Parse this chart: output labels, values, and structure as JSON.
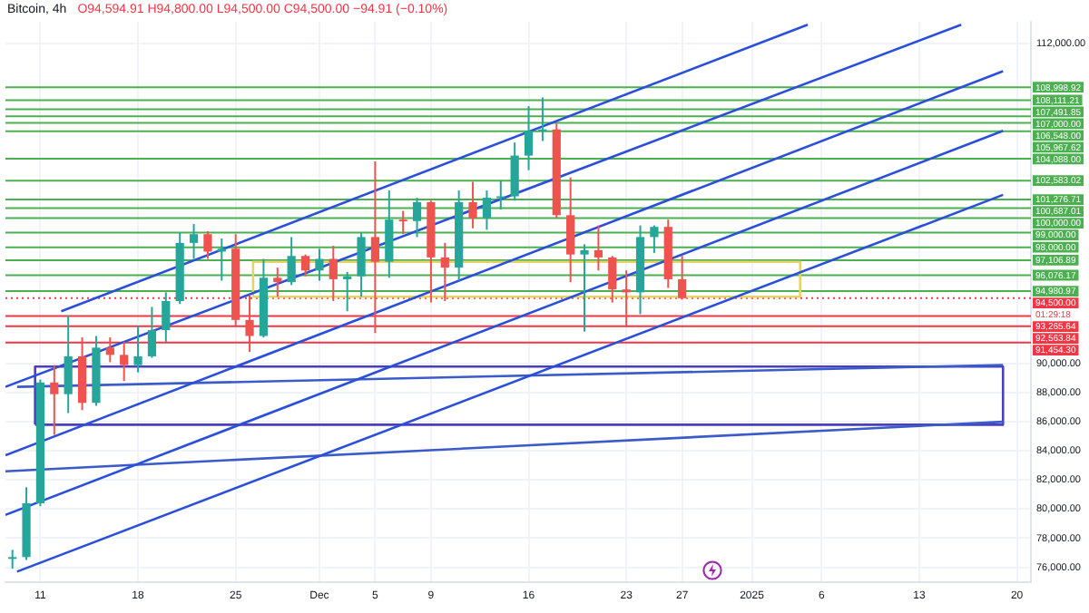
{
  "chart_data": {
    "type": "candlestick",
    "title": "Bitcoin, 4h",
    "subtitle": "O94,594.91 H94,800.00 L94,500.00 C94,500.00 −94.91 (−0.10%)",
    "x": [
      "2024-11-09",
      "2024-11-10",
      "2024-11-11",
      "2024-11-12",
      "2024-11-13",
      "2024-11-14",
      "2024-11-15",
      "2024-11-16",
      "2024-11-17",
      "2024-11-18",
      "2024-11-19",
      "2024-11-20",
      "2024-11-21",
      "2024-11-22",
      "2024-11-23",
      "2024-11-24",
      "2024-11-25",
      "2024-11-26",
      "2024-11-27",
      "2024-11-28",
      "2024-11-29",
      "2024-11-30",
      "2024-12-01",
      "2024-12-02",
      "2024-12-03",
      "2024-12-04",
      "2024-12-05",
      "2024-12-06",
      "2024-12-07",
      "2024-12-08",
      "2024-12-09",
      "2024-12-10",
      "2024-12-11",
      "2024-12-12",
      "2024-12-13",
      "2024-12-14",
      "2024-12-15",
      "2024-12-16",
      "2024-12-17",
      "2024-12-18",
      "2024-12-19",
      "2024-12-20",
      "2024-12-21",
      "2024-12-22",
      "2024-12-23",
      "2024-12-24",
      "2024-12-25",
      "2024-12-26",
      "2024-12-27"
    ],
    "ohlc": [
      [
        76600,
        77200,
        75900,
        76700
      ],
      [
        76700,
        81500,
        76500,
        80400
      ],
      [
        80400,
        88900,
        80200,
        88700
      ],
      [
        88700,
        89900,
        85100,
        87900
      ],
      [
        87900,
        93300,
        86600,
        90500
      ],
      [
        90500,
        91800,
        86800,
        87300
      ],
      [
        87300,
        91900,
        87100,
        91100
      ],
      [
        91100,
        91800,
        90100,
        90600
      ],
      [
        90600,
        91500,
        88800,
        89900
      ],
      [
        89900,
        92600,
        89400,
        90500
      ],
      [
        90500,
        93900,
        90400,
        92300
      ],
      [
        92300,
        94900,
        91500,
        94300
      ],
      [
        94300,
        99000,
        94100,
        98300
      ],
      [
        98300,
        99600,
        97200,
        98900
      ],
      [
        98900,
        99100,
        97200,
        97700
      ],
      [
        97700,
        98600,
        95700,
        97900
      ],
      [
        97900,
        98900,
        92600,
        93000
      ],
      [
        93000,
        94700,
        90800,
        91900
      ],
      [
        91900,
        97200,
        91800,
        95900
      ],
      [
        95900,
        96600,
        94600,
        95600
      ],
      [
        95600,
        98700,
        95400,
        97400
      ],
      [
        97400,
        97500,
        96000,
        96400
      ],
      [
        96400,
        97900,
        95700,
        97200
      ],
      [
        97200,
        98100,
        94300,
        95800
      ],
      [
        95800,
        96300,
        93600,
        96000
      ],
      [
        96000,
        99000,
        94600,
        98700
      ],
      [
        98700,
        103900,
        92100,
        97000
      ],
      [
        97000,
        101900,
        95900,
        99900
      ],
      [
        99900,
        100500,
        98900,
        99800
      ],
      [
        99800,
        101400,
        98700,
        101100
      ],
      [
        101100,
        101200,
        94200,
        97300
      ],
      [
        97300,
        98300,
        94300,
        96600
      ],
      [
        96600,
        101900,
        95700,
        101100
      ],
      [
        101100,
        102500,
        99300,
        100000
      ],
      [
        100000,
        101900,
        99200,
        101400
      ],
      [
        101400,
        102600,
        100600,
        101500
      ],
      [
        101500,
        105200,
        101200,
        104300
      ],
      [
        104300,
        107700,
        103300,
        106000
      ],
      [
        106000,
        108300,
        105300,
        106100
      ],
      [
        106100,
        106500,
        100000,
        100200
      ],
      [
        100200,
        102800,
        95600,
        97500
      ],
      [
        97500,
        98200,
        92200,
        97800
      ],
      [
        97800,
        99500,
        96400,
        97300
      ],
      [
        97300,
        97400,
        94200,
        95100
      ],
      [
        95100,
        96400,
        92500,
        94900
      ],
      [
        94900,
        99500,
        93400,
        98700
      ],
      [
        98700,
        99500,
        97600,
        99400
      ],
      [
        99400,
        99900,
        95200,
        95800
      ],
      [
        95800,
        97400,
        94400,
        94500
      ]
    ],
    "colors": [
      "#26a69a",
      "#26a69a",
      "#26a69a",
      "#ef5350",
      "#26a69a",
      "#ef5350",
      "#26a69a",
      "#ef5350",
      "#ef5350",
      "#26a69a",
      "#26a69a",
      "#26a69a",
      "#26a69a",
      "#26a69a",
      "#ef5350",
      "#26a69a",
      "#ef5350",
      "#ef5350",
      "#26a69a",
      "#ef5350",
      "#26a69a",
      "#ef5350",
      "#26a69a",
      "#ef5350",
      "#26a69a",
      "#26a69a",
      "#ef5350",
      "#26a69a",
      "#ef5350",
      "#26a69a",
      "#ef5350",
      "#ef5350",
      "#26a69a",
      "#ef5350",
      "#26a69a",
      "#26a69a",
      "#26a69a",
      "#26a69a",
      "#26a69a",
      "#ef5350",
      "#ef5350",
      "#26a69a",
      "#ef5350",
      "#ef5350",
      "#ef5350",
      "#26a69a",
      "#26a69a",
      "#ef5350",
      "#ef5350"
    ],
    "series": [
      {
        "type": "line",
        "color": "#2a4fd8",
        "x": [
          "2024-11-12T12:00",
          "2025-01-05T00:00"
        ],
        "values": [
          93600,
          113300
        ]
      },
      {
        "type": "line",
        "color": "#2a4fd8",
        "x": [
          "2024-11-08T12:00",
          "2025-01-16T00:00"
        ],
        "values": [
          88400,
          113300
        ]
      },
      {
        "type": "line",
        "color": "#2a4fd8",
        "x": [
          "2024-11-08T12:00",
          "2025-01-19T00:00"
        ],
        "values": [
          83700,
          110100
        ]
      },
      {
        "type": "line",
        "color": "#2a4fd8",
        "x": [
          "2024-11-08T12:00",
          "2025-01-19T00:00"
        ],
        "values": [
          79600,
          106000
        ]
      },
      {
        "type": "line",
        "color": "#2a4fd8",
        "x": [
          "2024-11-09T08:00",
          "2025-01-19T00:00"
        ],
        "values": [
          75700,
          101600
        ]
      },
      {
        "type": "line",
        "color": "#3b5bc9",
        "x": [
          "2024-11-09T08:00",
          "2025-01-19T00:00"
        ],
        "values": [
          88400,
          89900
        ]
      },
      {
        "type": "line",
        "color": "#3b5bc9",
        "x": [
          "2024-11-08T12:00",
          "2025-01-19T00:00"
        ],
        "values": [
          82600,
          86000
        ]
      },
      {
        "type": "line",
        "color": "#4a3fbf",
        "x": [
          "2024-11-10T15:00",
          "2024-11-10T15:00",
          "2025-01-19T00:00",
          "2025-01-19T00:00"
        ],
        "values": [
          85800,
          89800,
          89800,
          85800
        ]
      },
      {
        "type": "line",
        "color": "#4a3fbf",
        "x": [
          "2024-11-10T15:00",
          "2025-01-19T00:00"
        ],
        "values": [
          85800,
          85800
        ]
      },
      {
        "type": "line",
        "color": "#e6d36a",
        "x": [
          "2024-11-26T06:00",
          "2024-11-26T06:00",
          "2025-01-04T11:00",
          "2025-01-04T11:00"
        ],
        "values": [
          94600,
          97000,
          97000,
          94600
        ]
      },
      {
        "type": "line",
        "color": "#e6d36a",
        "x": [
          "2024-11-26T06:00",
          "2025-01-04T11:00"
        ],
        "values": [
          94600,
          94600
        ]
      }
    ],
    "ref_lines": [
      {
        "axis": "y",
        "value": 108998.92,
        "label": "108,998.92",
        "color": "#4caf50"
      },
      {
        "axis": "y",
        "value": 108111.21,
        "label": "108,111.21",
        "color": "#4caf50"
      },
      {
        "axis": "y",
        "value": 107491.85,
        "label": "107,491.85",
        "color": "#4caf50"
      },
      {
        "axis": "y",
        "value": 107000,
        "label": "107,000.00",
        "color": "#4caf50"
      },
      {
        "axis": "y",
        "value": 106548,
        "label": "106,548.00",
        "color": "#4caf50"
      },
      {
        "axis": "y",
        "value": 105967.62,
        "label": "105,967.62",
        "color": "#4caf50"
      },
      {
        "axis": "y",
        "value": 104088,
        "label": "104,088.00",
        "color": "#4caf50"
      },
      {
        "axis": "y",
        "value": 102583.02,
        "label": "102,583.02",
        "color": "#4caf50"
      },
      {
        "axis": "y",
        "value": 101276.71,
        "label": "101,276.71",
        "color": "#4caf50"
      },
      {
        "axis": "y",
        "value": 100687.01,
        "label": "100,687.01",
        "color": "#4caf50"
      },
      {
        "axis": "y",
        "value": 100000,
        "label": "100,000.00",
        "color": "#4caf50"
      },
      {
        "axis": "y",
        "value": 99000,
        "label": "99,000.00",
        "color": "#4caf50"
      },
      {
        "axis": "y",
        "value": 98000,
        "label": "98,000.00",
        "color": "#4caf50"
      },
      {
        "axis": "y",
        "value": 97106.89,
        "label": "97,106.89",
        "color": "#4caf50"
      },
      {
        "axis": "y",
        "value": 96076.17,
        "label": "96,076.17",
        "color": "#4caf50"
      },
      {
        "axis": "y",
        "value": 94980.97,
        "label": "94,980.97",
        "color": "#4caf50"
      },
      {
        "axis": "y",
        "value": 94500,
        "label": "94,500.00",
        "color": "#f23645",
        "line_style": "dotted"
      },
      {
        "axis": "y",
        "value": 93265.64,
        "label": "93,265.64",
        "color": "#f23645"
      },
      {
        "axis": "y",
        "value": 92563.84,
        "label": "92,563.84",
        "color": "#f23645"
      },
      {
        "axis": "y",
        "value": 91454.3,
        "label": "91,454.30",
        "color": "#f23645"
      }
    ],
    "annotations": [
      "01:29:18"
    ],
    "xlim": [
      "2024-11-08T12:00",
      "2025-01-21T00:00"
    ],
    "xticks": [
      {
        "value": "2024-11-11",
        "label": "11"
      },
      {
        "value": "2024-11-18",
        "label": "18"
      },
      {
        "value": "2024-11-25",
        "label": "25"
      },
      {
        "value": "2024-12-01",
        "label": "Dec"
      },
      {
        "value": "2024-12-05",
        "label": "5"
      },
      {
        "value": "2024-12-09",
        "label": "9"
      },
      {
        "value": "2024-12-16",
        "label": "16"
      },
      {
        "value": "2024-12-23",
        "label": "23"
      },
      {
        "value": "2024-12-27",
        "label": "27"
      },
      {
        "value": "2025-01-01",
        "label": "2025"
      },
      {
        "value": "2025-01-06",
        "label": "6"
      },
      {
        "value": "2025-01-13",
        "label": "13"
      },
      {
        "value": "2025-01-20",
        "label": "20"
      }
    ],
    "ylim": [
      75000,
      113500
    ],
    "yticks": [
      {
        "value": 76000,
        "label": "76,000.00"
      },
      {
        "value": 78000,
        "label": "78,000.00"
      },
      {
        "value": 80000,
        "label": "80,000.00"
      },
      {
        "value": 82000,
        "label": "82,000.00"
      },
      {
        "value": 84000,
        "label": "84,000.00"
      },
      {
        "value": 86000,
        "label": "86,000.00"
      },
      {
        "value": 88000,
        "label": "88,000.00"
      },
      {
        "value": 90000,
        "label": "90,000.00"
      },
      {
        "value": 112000,
        "label": "112,000.00"
      }
    ],
    "grid": true,
    "legend": false
  }
}
